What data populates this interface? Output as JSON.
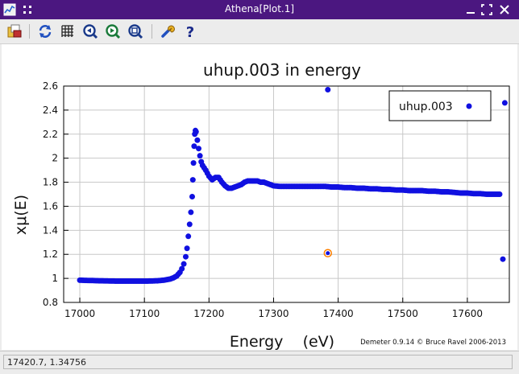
{
  "window": {
    "title": "Athena[Plot.1]",
    "colors": {
      "titlebar": "#4b1780",
      "marker": "#1010e0",
      "highlight": "#ff8000"
    }
  },
  "toolbar": {
    "icons": [
      "open-icon",
      "refresh-icon",
      "grid-icon",
      "zoom-in-icon",
      "zoom-out-icon",
      "zoom-reset-icon",
      "settings-icon",
      "help-icon"
    ]
  },
  "status": {
    "text": "17420.7, 1.34756"
  },
  "credit": "Demeter 0.9.14 © Bruce Ravel 2006-2013",
  "chart_data": {
    "type": "scatter",
    "title": "uhup.003 in energy",
    "xlabel": "Energy    (eV)",
    "ylabel": "xμ(E)",
    "xlim": [
      16975,
      17665
    ],
    "ylim": [
      0.8,
      2.6
    ],
    "xticks": [
      "17000",
      "17100",
      "17200",
      "17300",
      "17400",
      "17500",
      "17600"
    ],
    "yticks": [
      "0.8",
      "1",
      "1.2",
      "1.4",
      "1.6",
      "1.8",
      "2",
      "2.2",
      "2.4",
      "2.6"
    ],
    "grid": true,
    "legend": {
      "position": "top-right",
      "entries": [
        "uhup.003"
      ]
    },
    "series": [
      {
        "name": "uhup.003",
        "x": [
          17000,
          17010,
          17020,
          17030,
          17040,
          17050,
          17060,
          17070,
          17080,
          17090,
          17100,
          17110,
          17120,
          17130,
          17140,
          17145,
          17150,
          17155,
          17158,
          17161,
          17164,
          17166,
          17168,
          17170,
          17172,
          17174,
          17175,
          17176,
          17177,
          17178,
          17179,
          17180,
          17182,
          17184,
          17186,
          17188,
          17190,
          17195,
          17200,
          17205,
          17210,
          17215,
          17220,
          17225,
          17230,
          17235,
          17240,
          17245,
          17250,
          17255,
          17260,
          17265,
          17270,
          17275,
          17280,
          17285,
          17290,
          17295,
          17300,
          17310,
          17320,
          17330,
          17340,
          17350,
          17360,
          17370,
          17380,
          17390,
          17400,
          17410,
          17420,
          17430,
          17440,
          17450,
          17460,
          17470,
          17480,
          17490,
          17500,
          17510,
          17520,
          17530,
          17540,
          17550,
          17560,
          17570,
          17580,
          17590,
          17600,
          17610,
          17620,
          17630,
          17640,
          17650,
          17384,
          17655,
          17658
        ],
        "y": [
          0.985,
          0.983,
          0.982,
          0.98,
          0.979,
          0.978,
          0.977,
          0.977,
          0.977,
          0.977,
          0.977,
          0.978,
          0.98,
          0.985,
          0.995,
          1.005,
          1.02,
          1.05,
          1.08,
          1.12,
          1.18,
          1.25,
          1.35,
          1.45,
          1.55,
          1.68,
          1.82,
          1.96,
          2.1,
          2.2,
          2.23,
          2.22,
          2.15,
          2.08,
          2.02,
          1.97,
          1.94,
          1.9,
          1.85,
          1.82,
          1.84,
          1.84,
          1.8,
          1.77,
          1.75,
          1.75,
          1.76,
          1.77,
          1.78,
          1.8,
          1.81,
          1.81,
          1.81,
          1.81,
          1.8,
          1.8,
          1.79,
          1.78,
          1.77,
          1.765,
          1.765,
          1.765,
          1.765,
          1.765,
          1.765,
          1.765,
          1.765,
          1.76,
          1.76,
          1.755,
          1.755,
          1.75,
          1.75,
          1.745,
          1.745,
          1.74,
          1.74,
          1.735,
          1.735,
          1.73,
          1.73,
          1.73,
          1.725,
          1.725,
          1.72,
          1.72,
          1.715,
          1.71,
          1.71,
          1.705,
          1.705,
          1.7,
          1.7,
          1.7,
          2.57,
          1.16,
          2.46
        ]
      }
    ],
    "highlight_point": {
      "x": 17384,
      "y": 1.21
    }
  }
}
